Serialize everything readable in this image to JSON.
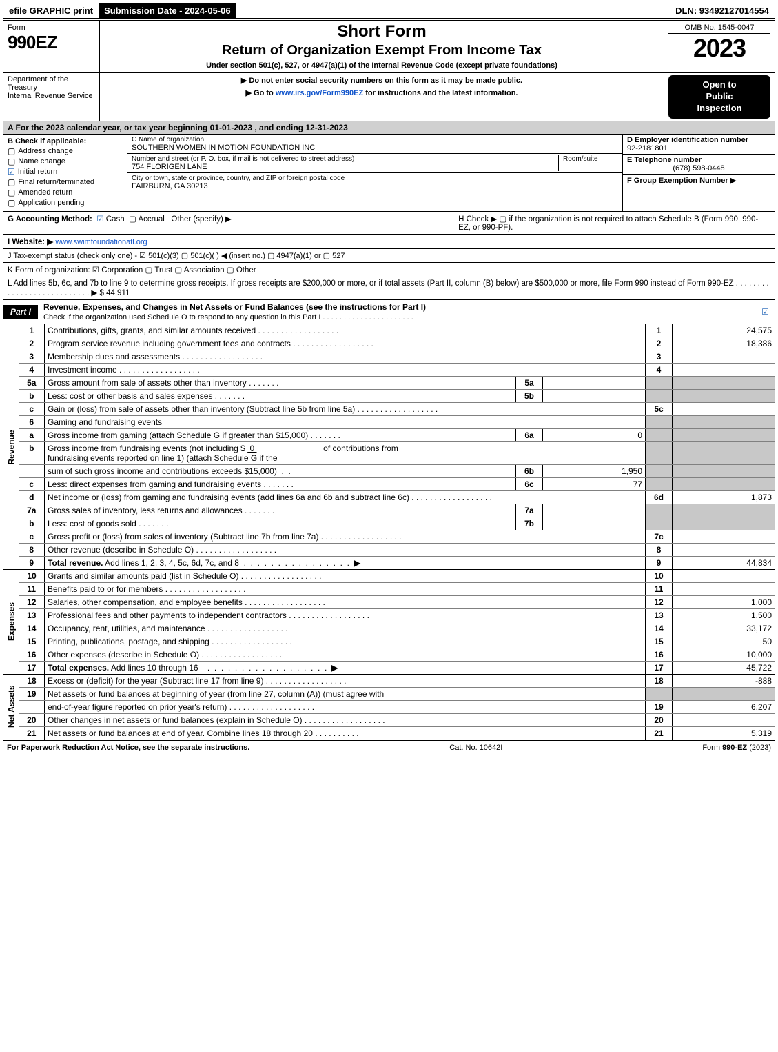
{
  "topbar": {
    "efile": "efile GRAPHIC print",
    "submission": "Submission Date - 2024-05-06",
    "dln": "DLN: 93492127014554"
  },
  "header": {
    "form_word": "Form",
    "form_number": "990EZ",
    "short_form": "Short Form",
    "main_title": "Return of Organization Exempt From Income Tax",
    "subtitle": "Under section 501(c), 527, or 4947(a)(1) of the Internal Revenue Code (except private foundations)",
    "omb": "OMB No. 1545-0047",
    "year": "2023",
    "dept": "Department of the Treasury\nInternal Revenue Service",
    "instr1": "▶ Do not enter social security numbers on this form as it may be made public.",
    "instr2_prefix": "▶ Go to ",
    "instr2_link": "www.irs.gov/Form990EZ",
    "instr2_suffix": " for instructions and the latest information.",
    "badge1": "Open to",
    "badge2": "Public",
    "badge3": "Inspection"
  },
  "section_a": "A  For the 2023 calendar year, or tax year beginning 01-01-2023  , and ending 12-31-2023",
  "section_b": {
    "title": "B  Check if applicable:",
    "items": [
      {
        "checked": false,
        "label": "Address change"
      },
      {
        "checked": false,
        "label": "Name change"
      },
      {
        "checked": true,
        "label": "Initial return"
      },
      {
        "checked": false,
        "label": "Final return/terminated"
      },
      {
        "checked": false,
        "label": "Amended return"
      },
      {
        "checked": false,
        "label": "Application pending"
      }
    ]
  },
  "section_c": {
    "name_label": "C Name of organization",
    "name": "SOUTHERN WOMEN IN MOTION FOUNDATION INC",
    "street_label": "Number and street (or P. O. box, if mail is not delivered to street address)",
    "room_label": "Room/suite",
    "street": "754 FLORIGEN LANE",
    "city_label": "City or town, state or province, country, and ZIP or foreign postal code",
    "city": "FAIRBURN, GA  30213"
  },
  "section_d_f": {
    "ein_label": "D Employer identification number",
    "ein": "92-2181801",
    "phone_label": "E Telephone number",
    "phone": "(678) 598-0448",
    "group_label": "F Group Exemption Number   ▶"
  },
  "section_g": {
    "label": "G Accounting Method:",
    "cash": "Cash",
    "accrual": "Accrual",
    "other": "Other (specify) ▶"
  },
  "section_h": "H  Check ▶   ▢  if the organization is not required to attach Schedule B (Form 990, 990-EZ, or 990-PF).",
  "section_i": {
    "label": "I Website: ▶",
    "url": "www.swimfoundationatl.org"
  },
  "section_j": "J Tax-exempt status (check only one) -  ☑ 501(c)(3)  ▢ 501(c)(  ) ◀ (insert no.)  ▢ 4947(a)(1) or  ▢ 527",
  "section_k": "K Form of organization:   ☑ Corporation   ▢ Trust   ▢ Association   ▢ Other",
  "section_l": {
    "text": "L Add lines 5b, 6c, and 7b to line 9 to determine gross receipts. If gross receipts are $200,000 or more, or if total assets (Part II, column (B) below) are $500,000 or more, file Form 990 instead of Form 990-EZ  .  .  .  .  .  .  .  .  .  .  .  .  .  .  .  .  .  .  .  .  .  .  .  .  .  .  .  ▶ $",
    "value": "44,911"
  },
  "part1": {
    "label": "Part I",
    "title": "Revenue, Expenses, and Changes in Net Assets or Fund Balances (see the instructions for Part I)",
    "subtitle": "Check if the organization used Schedule O to respond to any question in this Part I  .  .  .  .  .  .  .  .  .  .  .  .  .  .  .  .  .  .  .  .  .  .",
    "checked": "☑"
  },
  "sides": {
    "revenue": "Revenue",
    "expenses": "Expenses",
    "netassets": "Net Assets"
  },
  "revenue_rows": [
    {
      "n": "1",
      "desc": "Contributions, gifts, grants, and similar amounts received",
      "num": "1",
      "val": "24,575"
    },
    {
      "n": "2",
      "desc": "Program service revenue including government fees and contracts",
      "num": "2",
      "val": "18,386"
    },
    {
      "n": "3",
      "desc": "Membership dues and assessments",
      "num": "3",
      "val": ""
    },
    {
      "n": "4",
      "desc": "Investment income",
      "num": "4",
      "val": ""
    }
  ],
  "row5a": {
    "n": "5a",
    "desc": "Gross amount from sale of assets other than inventory",
    "sub": "5a",
    "subval": ""
  },
  "row5b": {
    "n": "b",
    "desc": "Less: cost or other basis and sales expenses",
    "sub": "5b",
    "subval": ""
  },
  "row5c": {
    "n": "c",
    "desc": "Gain or (loss) from sale of assets other than inventory (Subtract line 5b from line 5a)",
    "num": "5c",
    "val": ""
  },
  "row6": {
    "n": "6",
    "desc": "Gaming and fundraising events"
  },
  "row6a": {
    "n": "a",
    "desc": "Gross income from gaming (attach Schedule G if greater than $15,000)",
    "sub": "6a",
    "subval": "0"
  },
  "row6b": {
    "n": "b",
    "desc1": "Gross income from fundraising events (not including $ ",
    "val_inline": "0",
    "desc1b": "of contributions from",
    "desc2": "fundraising events reported on line 1) (attach Schedule G if the",
    "desc3": "sum of such gross income and contributions exceeds $15,000)",
    "sub": "6b",
    "subval": "1,950"
  },
  "row6c": {
    "n": "c",
    "desc": "Less: direct expenses from gaming and fundraising events",
    "sub": "6c",
    "subval": "77"
  },
  "row6d": {
    "n": "d",
    "desc": "Net income or (loss) from gaming and fundraising events (add lines 6a and 6b and subtract line 6c)",
    "num": "6d",
    "val": "1,873"
  },
  "row7a": {
    "n": "7a",
    "desc": "Gross sales of inventory, less returns and allowances",
    "sub": "7a",
    "subval": ""
  },
  "row7b": {
    "n": "b",
    "desc": "Less: cost of goods sold",
    "sub": "7b",
    "subval": ""
  },
  "row7c": {
    "n": "c",
    "desc": "Gross profit or (loss) from sales of inventory (Subtract line 7b from line 7a)",
    "num": "7c",
    "val": ""
  },
  "row8": {
    "n": "8",
    "desc": "Other revenue (describe in Schedule O)",
    "num": "8",
    "val": ""
  },
  "row9": {
    "n": "9",
    "desc": "Total revenue. Add lines 1, 2, 3, 4, 5c, 6d, 7c, and 8",
    "num": "9",
    "val": "44,834"
  },
  "expense_rows": [
    {
      "n": "10",
      "desc": "Grants and similar amounts paid (list in Schedule O)",
      "num": "10",
      "val": ""
    },
    {
      "n": "11",
      "desc": "Benefits paid to or for members",
      "num": "11",
      "val": ""
    },
    {
      "n": "12",
      "desc": "Salaries, other compensation, and employee benefits",
      "num": "12",
      "val": "1,000"
    },
    {
      "n": "13",
      "desc": "Professional fees and other payments to independent contractors",
      "num": "13",
      "val": "1,500"
    },
    {
      "n": "14",
      "desc": "Occupancy, rent, utilities, and maintenance",
      "num": "14",
      "val": "33,172"
    },
    {
      "n": "15",
      "desc": "Printing, publications, postage, and shipping",
      "num": "15",
      "val": "50"
    },
    {
      "n": "16",
      "desc": "Other expenses (describe in Schedule O)",
      "num": "16",
      "val": "10,000"
    },
    {
      "n": "17",
      "desc": "Total expenses. Add lines 10 through 16",
      "num": "17",
      "val": "45,722"
    }
  ],
  "net_rows": [
    {
      "n": "18",
      "desc": "Excess or (deficit) for the year (Subtract line 17 from line 9)",
      "num": "18",
      "val": "-888"
    },
    {
      "n": "19",
      "desc": "Net assets or fund balances at beginning of year (from line 27, column (A)) (must agree with end-of-year figure reported on prior year's return)",
      "num": "19",
      "val": "6,207"
    },
    {
      "n": "20",
      "desc": "Other changes in net assets or fund balances (explain in Schedule O)",
      "num": "20",
      "val": ""
    },
    {
      "n": "21",
      "desc": "Net assets or fund balances at end of year. Combine lines 18 through 20",
      "num": "21",
      "val": "5,319"
    }
  ],
  "footer": {
    "left": "For Paperwork Reduction Act Notice, see the separate instructions.",
    "mid": "Cat. No. 10642I",
    "right_prefix": "Form ",
    "right_form": "990-EZ",
    "right_suffix": " (2023)"
  }
}
